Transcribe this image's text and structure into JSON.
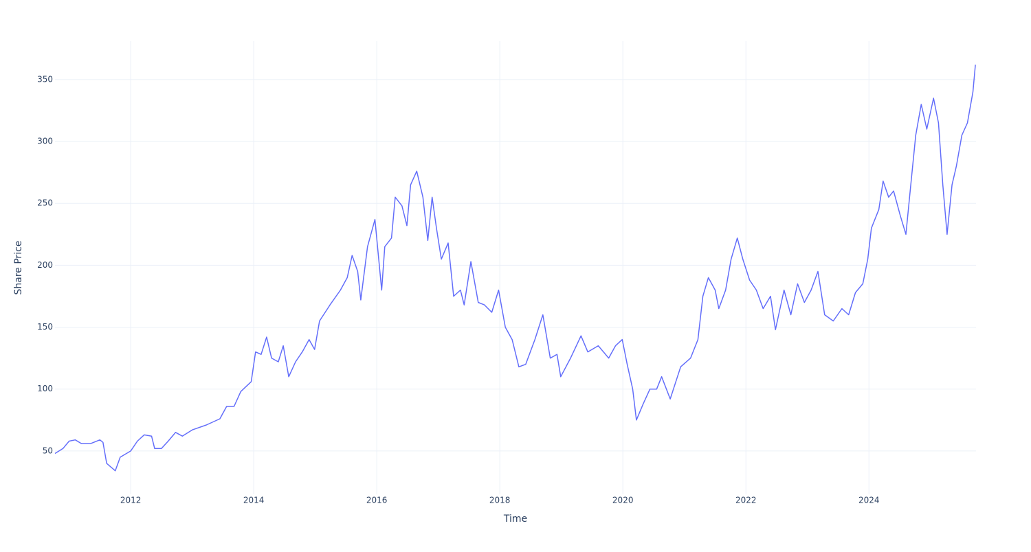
{
  "chart_data": {
    "type": "line",
    "x_label": "Time",
    "y_label": "Share Price",
    "x": [
      2010.77,
      2010.9,
      2011.0,
      2011.1,
      2011.2,
      2011.35,
      2011.5,
      2011.55,
      2011.61,
      2011.75,
      2011.83,
      2012.0,
      2012.11,
      2012.22,
      2012.34,
      2012.39,
      2012.5,
      2012.61,
      2012.73,
      2012.84,
      2013.0,
      2013.23,
      2013.45,
      2013.56,
      2013.68,
      2013.79,
      2013.96,
      2014.03,
      2014.12,
      2014.21,
      2014.29,
      2014.4,
      2014.48,
      2014.57,
      2014.68,
      2014.79,
      2014.9,
      2014.99,
      2015.07,
      2015.24,
      2015.41,
      2015.52,
      2015.6,
      2015.69,
      2015.74,
      2015.85,
      2015.97,
      2016.08,
      2016.13,
      2016.24,
      2016.3,
      2016.41,
      2016.49,
      2016.55,
      2016.65,
      2016.75,
      2016.83,
      2016.9,
      2016.97,
      2017.05,
      2017.16,
      2017.25,
      2017.36,
      2017.42,
      2017.53,
      2017.65,
      2017.75,
      2017.87,
      2017.98,
      2018.09,
      2018.2,
      2018.31,
      2018.42,
      2018.57,
      2018.7,
      2018.82,
      2018.93,
      2018.99,
      2019.15,
      2019.32,
      2019.43,
      2019.6,
      2019.77,
      2019.88,
      2019.99,
      2020.07,
      2020.16,
      2020.22,
      2020.33,
      2020.44,
      2020.55,
      2020.63,
      2020.77,
      2020.94,
      2021.1,
      2021.22,
      2021.3,
      2021.39,
      2021.5,
      2021.56,
      2021.67,
      2021.76,
      2021.86,
      2021.95,
      2022.06,
      2022.17,
      2022.28,
      2022.4,
      2022.48,
      2022.62,
      2022.73,
      2022.84,
      2022.95,
      2023.06,
      2023.17,
      2023.28,
      2023.42,
      2023.56,
      2023.67,
      2023.78,
      2023.9,
      2023.98,
      2024.04,
      2024.16,
      2024.23,
      2024.32,
      2024.4,
      2024.51,
      2024.6,
      2024.68,
      2024.76,
      2024.85,
      2024.94,
      2025.05,
      2025.13,
      2025.2,
      2025.27,
      2025.35,
      2025.42,
      2025.51,
      2025.6,
      2025.69,
      2025.73
    ],
    "series": [
      {
        "color": "#636efa",
        "values": [
          48,
          52,
          58,
          59,
          56,
          56,
          59,
          57,
          40,
          34,
          45,
          50,
          58,
          63,
          62,
          52,
          52,
          58,
          65,
          62,
          67,
          71,
          76,
          86,
          86,
          98,
          106,
          130,
          128,
          142,
          125,
          122,
          135,
          110,
          122,
          130,
          140,
          132,
          155,
          168,
          180,
          190,
          208,
          195,
          172,
          215,
          237,
          180,
          215,
          222,
          255,
          248,
          232,
          265,
          276,
          255,
          220,
          255,
          230,
          205,
          218,
          175,
          180,
          168,
          203,
          170,
          168,
          162,
          180,
          150,
          140,
          118,
          120,
          140,
          160,
          125,
          128,
          110,
          125,
          143,
          130,
          135,
          125,
          135,
          140,
          120,
          100,
          75,
          88,
          100,
          100,
          110,
          92,
          118,
          125,
          140,
          175,
          190,
          180,
          165,
          180,
          205,
          222,
          205,
          188,
          180,
          165,
          175,
          148,
          180,
          160,
          185,
          170,
          180,
          195,
          160,
          155,
          165,
          160,
          178,
          185,
          205,
          230,
          245,
          268,
          255,
          260,
          240,
          225,
          265,
          305,
          330,
          310,
          335,
          315,
          265,
          225,
          265,
          280,
          305,
          315,
          340,
          362
        ]
      }
    ],
    "xlim": [
      2010.77,
      2025.74
    ],
    "ylim": [
      15,
      381
    ],
    "xticks": [
      2012,
      2014,
      2016,
      2018,
      2020,
      2022,
      2024
    ],
    "yticks": [
      50,
      100,
      150,
      200,
      250,
      300,
      350
    ],
    "grid": true
  }
}
